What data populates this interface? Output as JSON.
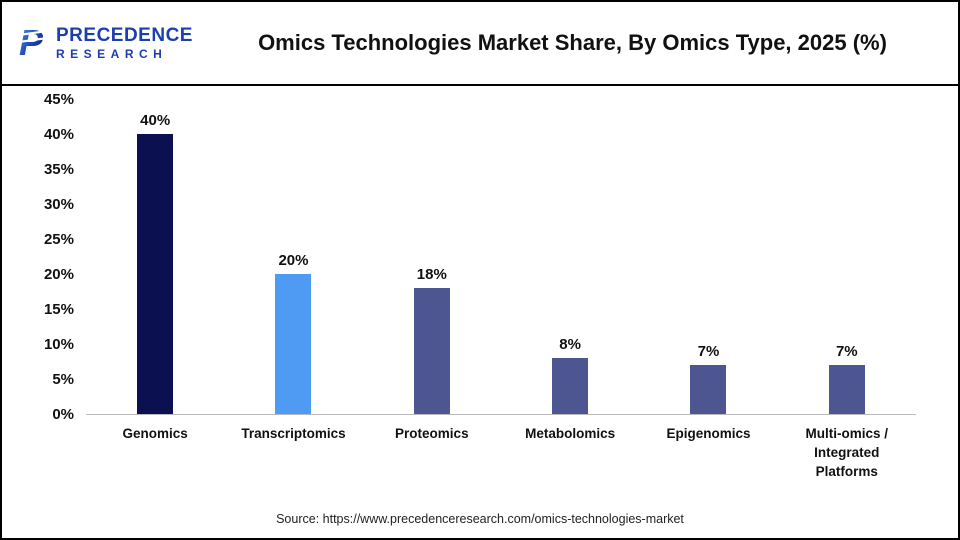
{
  "header": {
    "title": "Omics Technologies Market Share, By Omics Type, 2025 (%)",
    "logo": {
      "line1": "PRECEDENCE",
      "line2": "RESEARCH"
    }
  },
  "chart_data": {
    "type": "bar",
    "title": "Omics Technologies Market Share, By Omics Type, 2025 (%)",
    "categories": [
      "Genomics",
      "Transcriptomics",
      "Proteomics",
      "Metabolomics",
      "Epigenomics",
      "Multi-omics / Integrated Platforms"
    ],
    "values": [
      40,
      20,
      18,
      8,
      7,
      7
    ],
    "labels": [
      "40%",
      "20%",
      "18%",
      "8%",
      "7%",
      "7%"
    ],
    "bar_colors": [
      "#0b1150",
      "#4f9af2",
      "#4d5691",
      "#4d5691",
      "#4d5691",
      "#4d5691"
    ],
    "xlabel": "",
    "ylabel": "",
    "ylim": [
      0,
      45
    ],
    "yticks": [
      "0%",
      "5%",
      "10%",
      "15%",
      "20%",
      "25%",
      "30%",
      "35%",
      "40%",
      "45%"
    ],
    "grid": false,
    "legend": "none"
  },
  "footer": {
    "source": "Source: https://www.precedenceresearch.com/omics-technologies-market"
  }
}
